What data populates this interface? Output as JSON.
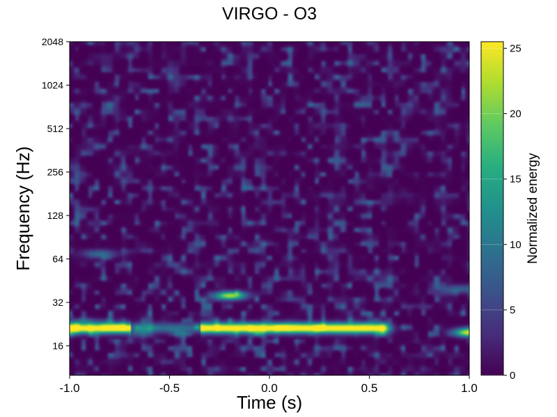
{
  "chart_data": {
    "type": "heatmap",
    "title": "VIRGO - O3",
    "xlabel": "Time (s)",
    "ylabel": "Frequency (Hz)",
    "xlim": [
      -1.0,
      1.0
    ],
    "ylim": [
      10,
      2048
    ],
    "yscale": "log2",
    "x_ticks": [
      -1.0,
      -0.5,
      0.0,
      0.5,
      1.0
    ],
    "x_tick_labels": [
      "-1.0",
      "-0.5",
      "0.0",
      "0.5",
      "1.0"
    ],
    "y_ticks": [
      16,
      32,
      64,
      128,
      256,
      512,
      1024,
      2048
    ],
    "y_tick_labels": [
      "16",
      "32",
      "64",
      "128",
      "256",
      "512",
      "1024",
      "2048"
    ],
    "colormap": "viridis",
    "colorbar": {
      "label": "Normalized energy",
      "range": [
        0,
        25.5
      ],
      "ticks": [
        0,
        5,
        10,
        15,
        20,
        25
      ],
      "tick_labels": [
        "0",
        "5",
        "10",
        "15",
        "20",
        "25"
      ]
    },
    "features": [
      {
        "kind": "band",
        "t_start": -1.0,
        "t_end": 0.55,
        "freq_start": 20,
        "freq_end": 23,
        "energy": 25
      },
      {
        "kind": "blob",
        "t": -0.2,
        "freq": 36,
        "energy": 20
      },
      {
        "kind": "blob",
        "t": 1.0,
        "freq": 20,
        "energy": 22
      },
      {
        "kind": "blob",
        "t": -0.85,
        "freq": 70,
        "energy": 8
      },
      {
        "kind": "blob",
        "t": 0.95,
        "freq": 40,
        "energy": 7
      }
    ]
  }
}
